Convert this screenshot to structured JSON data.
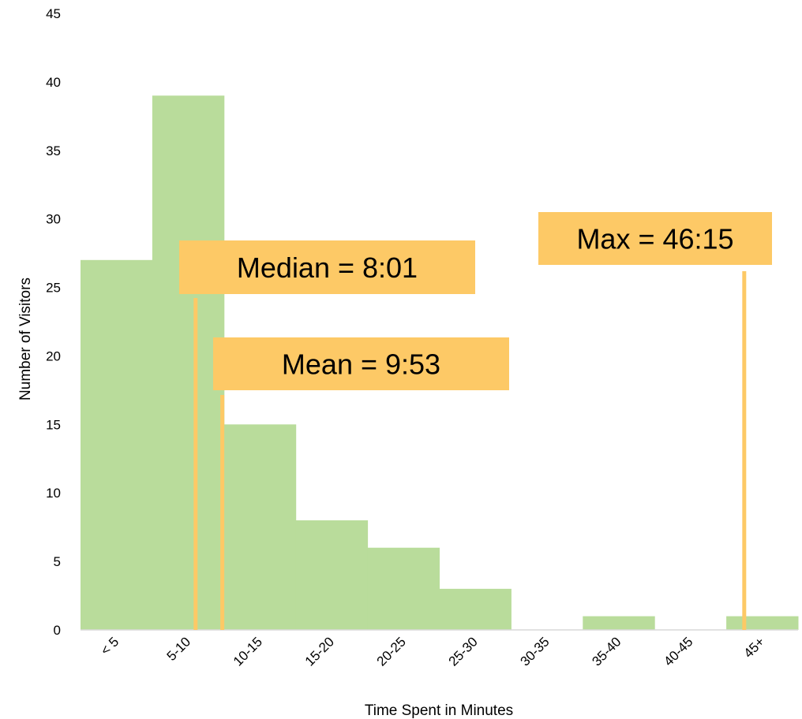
{
  "chart_data": {
    "type": "bar",
    "categories": [
      "< 5",
      "5-10",
      "10-15",
      "15-20",
      "20-25",
      "25-30",
      "30-35",
      "35-40",
      "40-45",
      "45+"
    ],
    "values": [
      27,
      39,
      15,
      8,
      6,
      3,
      0,
      1,
      0,
      1
    ],
    "xlabel": "Time Spent in Minutes",
    "ylabel": "Number of  Visitors",
    "ylim": [
      0,
      45
    ],
    "yticks": [
      0,
      5,
      10,
      15,
      20,
      25,
      30,
      35,
      40,
      45
    ],
    "grid": false,
    "legend": "none",
    "bar_color": "#b9dc9b",
    "annotations": [
      {
        "name": "median",
        "text": "Median = 8:01",
        "minutes": 8.02
      },
      {
        "name": "mean",
        "text": "Mean = 9:53",
        "minutes": 9.88
      },
      {
        "name": "max",
        "text": "Max = 46:15",
        "minutes": 46.25
      }
    ],
    "annotation_color": "#fdc966"
  }
}
